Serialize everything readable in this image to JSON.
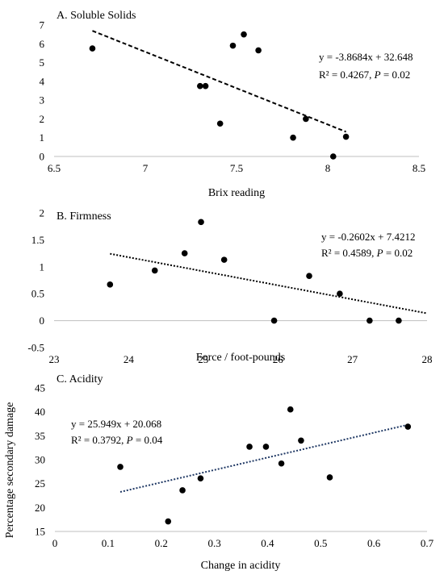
{
  "chart_data": [
    {
      "type": "scatter",
      "title": "A. Soluble Solids",
      "xlabel": "Brix reading",
      "ylabel": "",
      "xlim": [
        6.5,
        8.5
      ],
      "ylim": [
        0,
        7
      ],
      "xticks": [
        "6.5",
        "7",
        "7.5",
        "8",
        "8.5"
      ],
      "yticks": [
        "0",
        "1",
        "2",
        "3",
        "4",
        "5",
        "6",
        "7"
      ],
      "points": [
        {
          "x": 6.71,
          "y": 5.75
        },
        {
          "x": 7.3,
          "y": 3.75
        },
        {
          "x": 7.33,
          "y": 3.75
        },
        {
          "x": 7.41,
          "y": 1.75
        },
        {
          "x": 7.48,
          "y": 5.9
        },
        {
          "x": 7.54,
          "y": 6.5
        },
        {
          "x": 7.62,
          "y": 5.65
        },
        {
          "x": 7.81,
          "y": 1.0
        },
        {
          "x": 7.88,
          "y": 2.0
        },
        {
          "x": 8.03,
          "y": 0.0
        },
        {
          "x": 8.1,
          "y": 1.05
        }
      ],
      "trendline": {
        "slope": -3.8684,
        "intercept": 32.648,
        "x_range": [
          6.71,
          8.1
        ],
        "style": "dashed"
      },
      "equation": "y = -3.8684x + 32.648",
      "r2_text": "R² = 0.4267, ",
      "p_label": "P",
      "p_text": " = 0.02"
    },
    {
      "type": "scatter",
      "title": "B. Firmness",
      "xlabel": "Force / foot-pounds",
      "ylabel": "",
      "xlim": [
        23,
        28
      ],
      "ylim": [
        -0.5,
        2
      ],
      "xticks": [
        "23",
        "24",
        "25",
        "26",
        "27",
        "28"
      ],
      "yticks": [
        "-0.5",
        "0",
        "0.5",
        "1",
        "1.5",
        "2"
      ],
      "points": [
        {
          "x": 23.75,
          "y": 0.67
        },
        {
          "x": 24.35,
          "y": 0.93
        },
        {
          "x": 24.75,
          "y": 1.25
        },
        {
          "x": 24.97,
          "y": 1.83
        },
        {
          "x": 25.28,
          "y": 1.13
        },
        {
          "x": 25.95,
          "y": 0.0
        },
        {
          "x": 26.42,
          "y": 0.83
        },
        {
          "x": 26.83,
          "y": 0.5
        },
        {
          "x": 27.23,
          "y": 0.0
        },
        {
          "x": 27.62,
          "y": 0.0
        }
      ],
      "trendline": {
        "slope": -0.2602,
        "intercept": 7.4212,
        "x_range": [
          23.75,
          28
        ],
        "style": "dotted"
      },
      "equation": "y = -0.2602x + 7.4212",
      "r2_text": "R² = 0.4589, ",
      "p_label": "P",
      "p_text": " = 0.02"
    },
    {
      "type": "scatter",
      "title": "C. Acidity",
      "xlabel": "Change in acidity",
      "ylabel": "Percentage secondary damage",
      "xlim": [
        0,
        0.7
      ],
      "ylim": [
        15,
        45
      ],
      "xticks": [
        "0",
        "0.1",
        "0.2",
        "0.3",
        "0.4",
        "0.5",
        "0.6",
        "0.7"
      ],
      "yticks": [
        "15",
        "20",
        "25",
        "30",
        "35",
        "40",
        "45"
      ],
      "points": [
        {
          "x": 0.123,
          "y": 28.5
        },
        {
          "x": 0.213,
          "y": 17.1
        },
        {
          "x": 0.24,
          "y": 23.6
        },
        {
          "x": 0.274,
          "y": 26.1
        },
        {
          "x": 0.366,
          "y": 32.7
        },
        {
          "x": 0.397,
          "y": 32.7
        },
        {
          "x": 0.426,
          "y": 29.2
        },
        {
          "x": 0.443,
          "y": 40.5
        },
        {
          "x": 0.463,
          "y": 34.0
        },
        {
          "x": 0.517,
          "y": 26.3
        },
        {
          "x": 0.664,
          "y": 36.9
        }
      ],
      "trendline": {
        "slope": 25.949,
        "intercept": 20.068,
        "x_range": [
          0.123,
          0.664
        ],
        "style": "dotted"
      },
      "equation": "y = 25.949x + 20.068",
      "r2_text": "R² = 0.3792, ",
      "p_label": "P",
      "p_text": " = 0.04"
    }
  ]
}
